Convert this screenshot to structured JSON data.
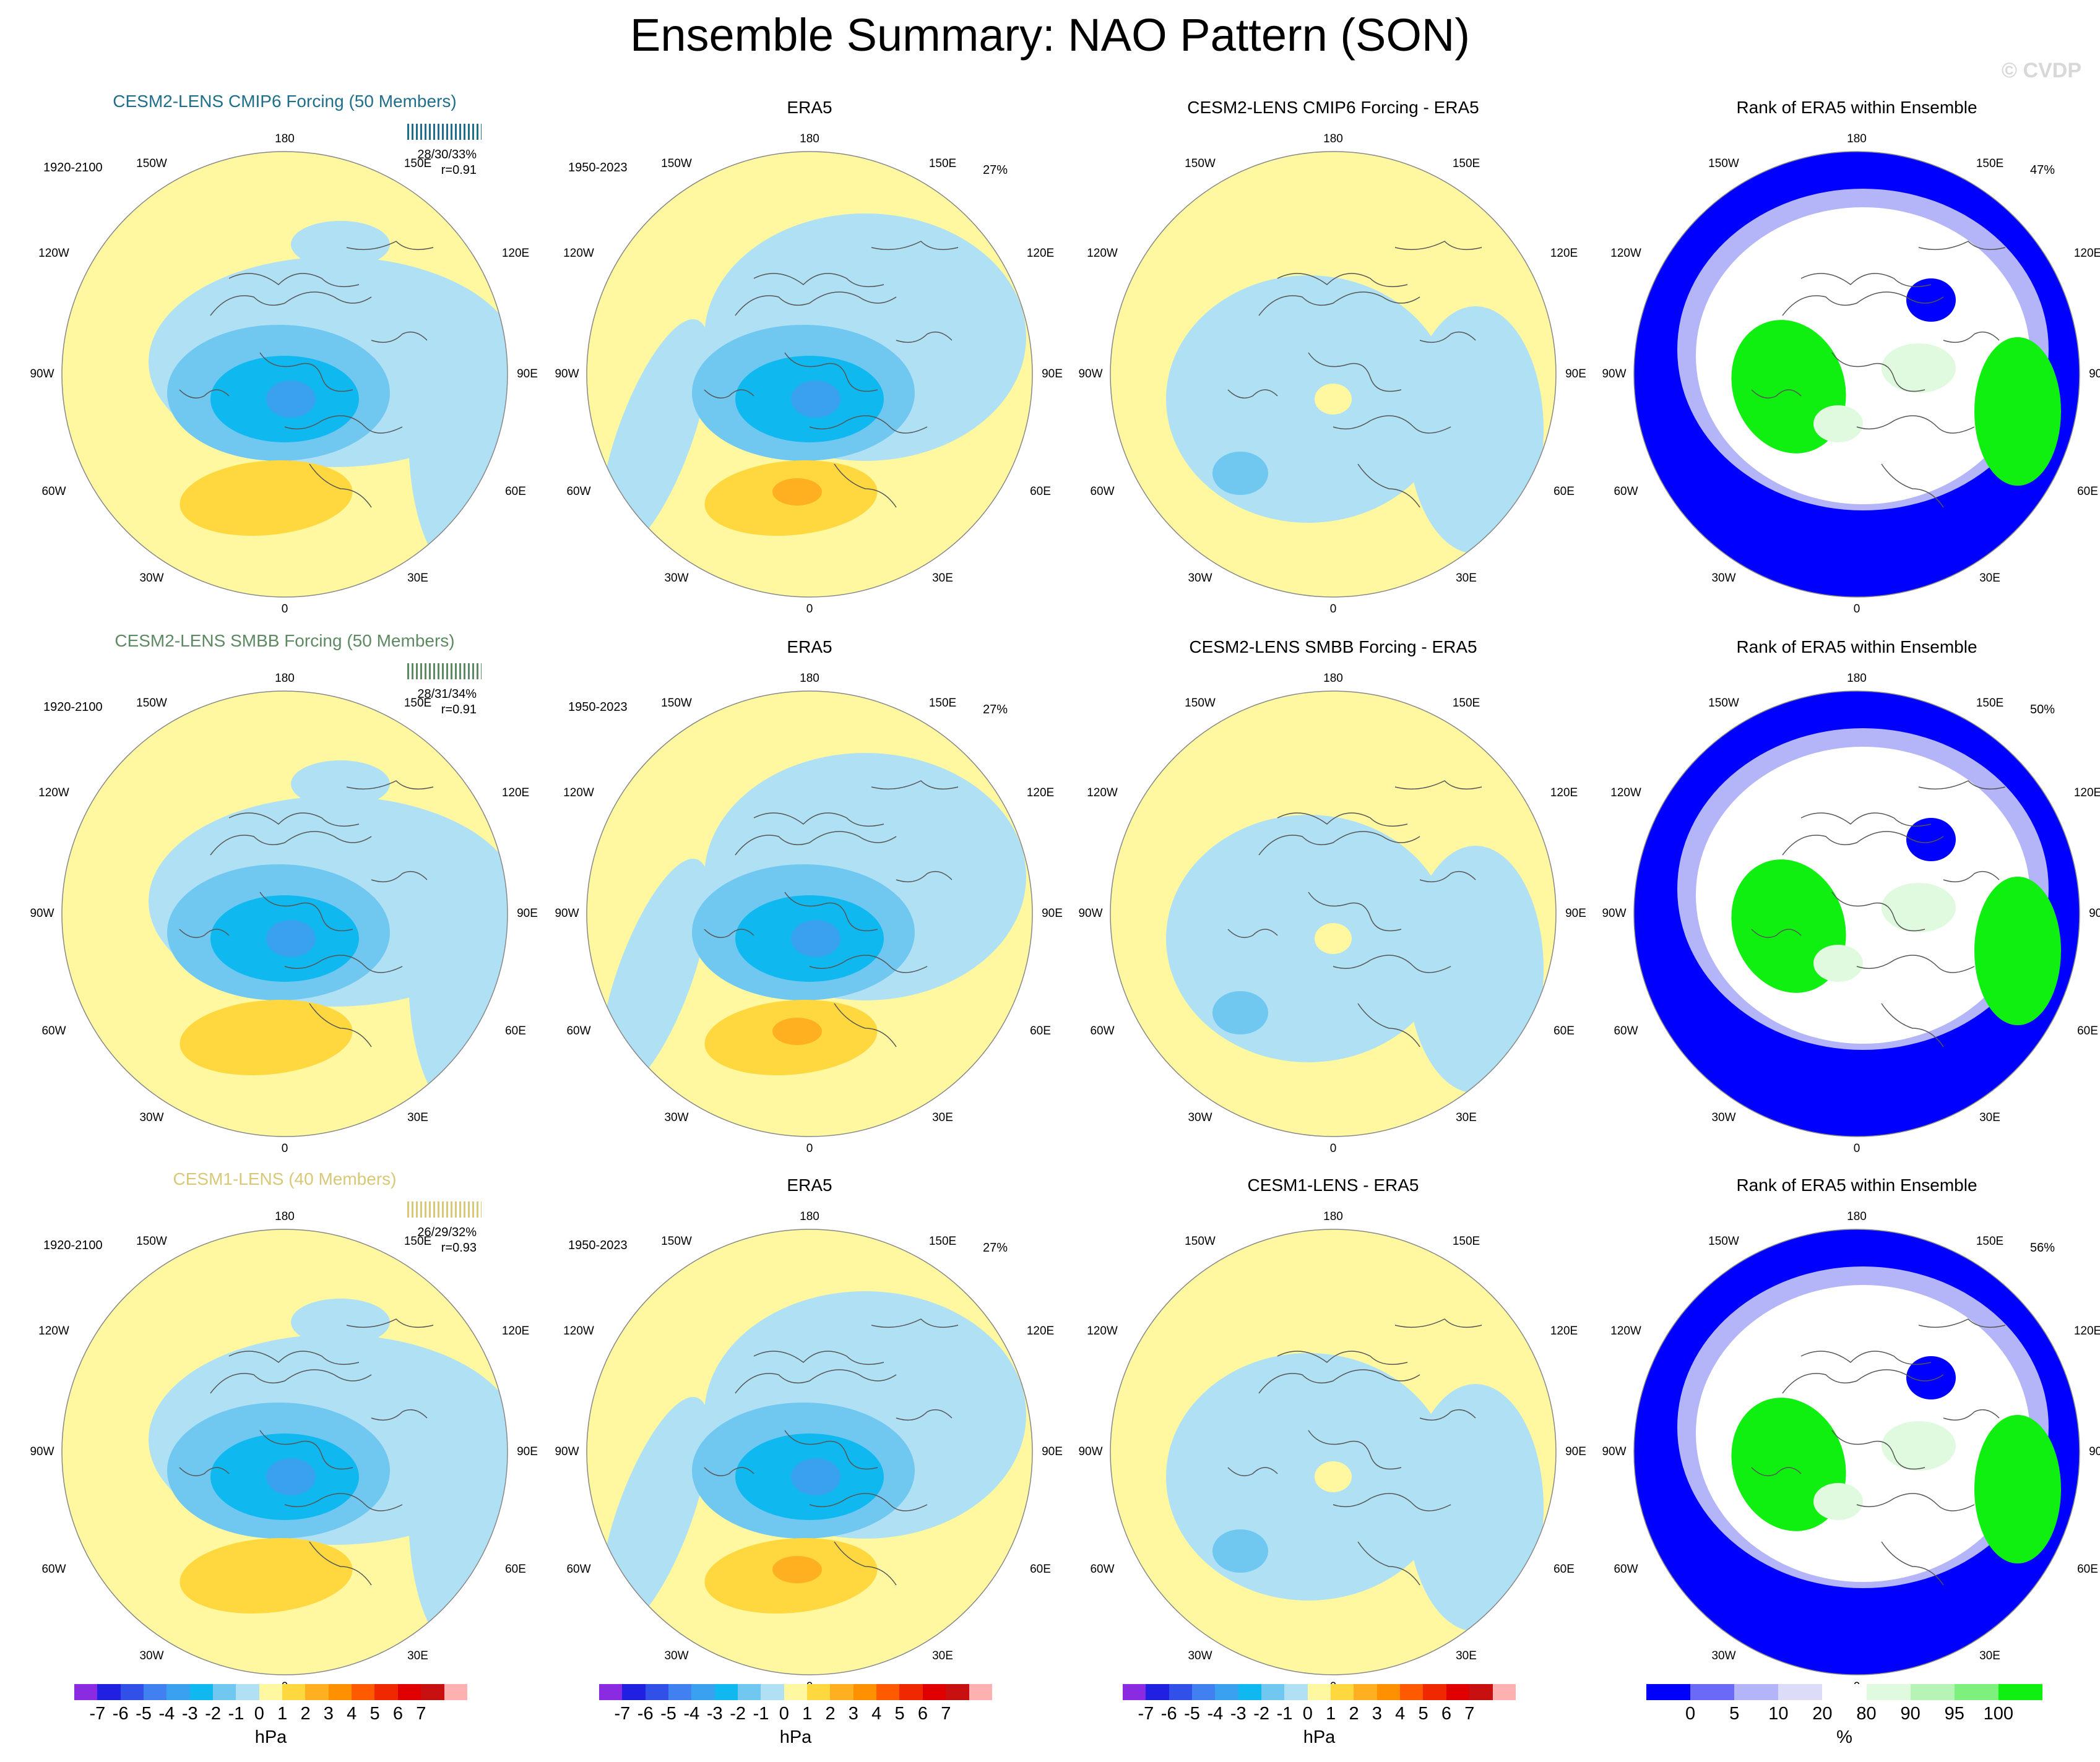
{
  "title": "Ensemble Summary: NAO Pattern (SON)",
  "watermark": "© CVDP",
  "lon_labels": {
    "top": "180",
    "bottom": "0",
    "l150": "150W",
    "l120": "120W",
    "l90": "90W",
    "l60": "60W",
    "l30": "30W",
    "r150": "150E",
    "r120": "120E",
    "r90": "90E",
    "r60": "60E",
    "r30": "30E"
  },
  "rows": [
    {
      "model": {
        "title": "CESM2-LENS CMIP6 Forcing (50 Members)",
        "title_color": "#1f6f8b",
        "years": "1920-2100",
        "stats1": "28/30/33%",
        "stats2": "r=0.91"
      },
      "obs": {
        "title": "ERA5",
        "years": "1950-2023",
        "pct": "27%"
      },
      "diff": {
        "title": "CESM2-LENS CMIP6 Forcing - ERA5"
      },
      "rank": {
        "title": "Rank of ERA5 within Ensemble",
        "pct": "47%"
      }
    },
    {
      "model": {
        "title": "CESM2-LENS SMBB Forcing (50 Members)",
        "title_color": "#5e8a63",
        "years": "1920-2100",
        "stats1": "28/31/34%",
        "stats2": "r=0.91"
      },
      "obs": {
        "title": "ERA5",
        "years": "1950-2023",
        "pct": "27%"
      },
      "diff": {
        "title": "CESM2-LENS SMBB Forcing - ERA5"
      },
      "rank": {
        "title": "Rank of ERA5 within Ensemble",
        "pct": "50%"
      }
    },
    {
      "model": {
        "title": "CESM1-LENS (40 Members)",
        "title_color": "#d8c878",
        "years": "1920-2100",
        "stats1": "26/29/32%",
        "stats2": "r=0.93"
      },
      "obs": {
        "title": "ERA5",
        "years": "1950-2023",
        "pct": "27%"
      },
      "diff": {
        "title": "CESM1-LENS - ERA5"
      },
      "rank": {
        "title": "Rank of ERA5 within Ensemble",
        "pct": "56%"
      }
    }
  ],
  "colorbar_hpa": {
    "colors": [
      "#8a2be2",
      "#2020e0",
      "#3050e8",
      "#4080f0",
      "#3aa0f0",
      "#10b8f0",
      "#70c8f0",
      "#b0e0f4",
      "#fff8a0",
      "#ffd840",
      "#ffb020",
      "#ff9000",
      "#ff5a00",
      "#f02800",
      "#e00000",
      "#c81010",
      "#ffb0b0"
    ],
    "ticks": [
      "-7",
      "-6",
      "-5",
      "-4",
      "-3",
      "-2",
      "-1",
      "0",
      "1",
      "2",
      "3",
      "4",
      "5",
      "6",
      "7"
    ],
    "unit": "hPa"
  },
  "colorbar_rank": {
    "colors": [
      "#0000ff",
      "#6a6af6",
      "#b4b4f8",
      "#dcdcf8",
      "#ffffff",
      "#e0fae0",
      "#b6f4b6",
      "#7ef07e",
      "#10f010"
    ],
    "ticks": [
      "0",
      "5",
      "10",
      "20",
      "80",
      "90",
      "95",
      "100"
    ],
    "unit": "%"
  },
  "field_colors": {
    "ocean_bg": "#fff8a0",
    "neg1": "#b0e0f4",
    "neg2": "#70c8f0",
    "neg3": "#10b8f0",
    "neg4": "#3aa0f0",
    "pos1": "#ffd840",
    "pos2": "#ffb020",
    "rank_low": "#0000ff",
    "rank_mid": "#b4b4f8",
    "rank_white": "#ffffff",
    "rank_high": "#10f010",
    "rank_light": "#e0fae0"
  }
}
